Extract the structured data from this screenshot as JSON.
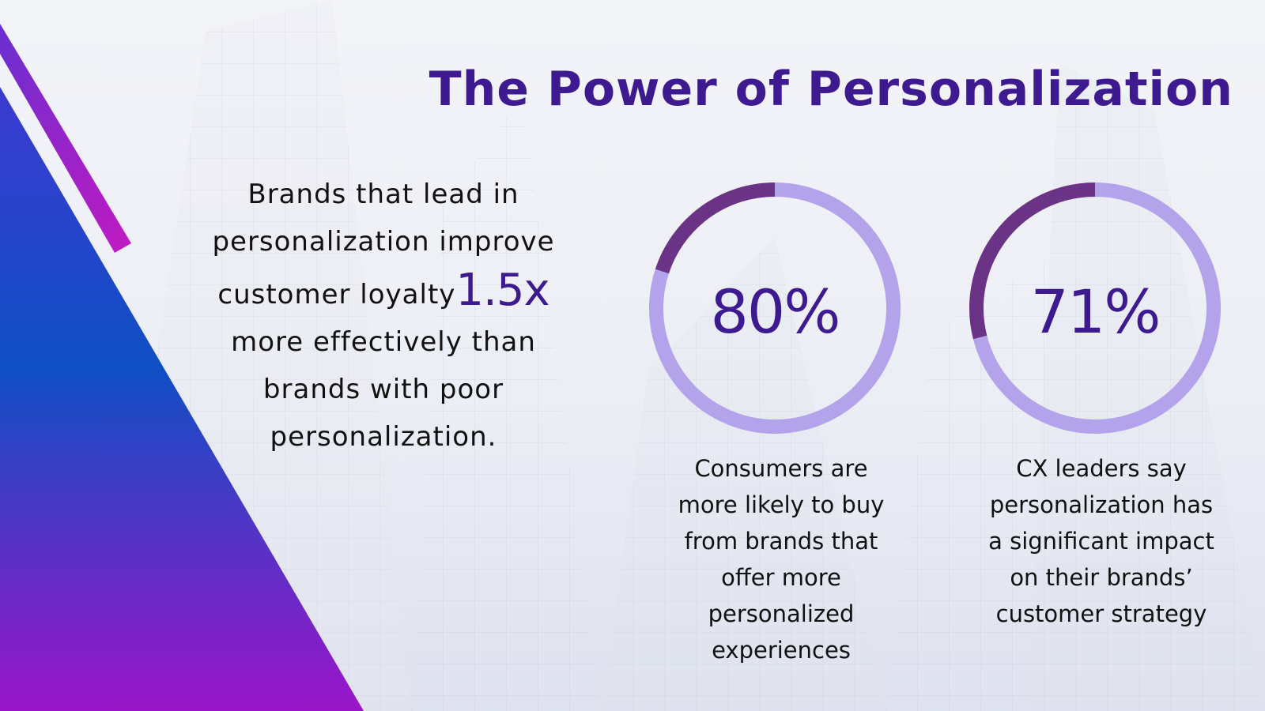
{
  "slide": {
    "title": "The Power of Personalization",
    "claim": {
      "line1": "Brands that lead in",
      "line2": "personalization improve",
      "line3": "customer loyalty",
      "multiplier": "1.5x",
      "line4": "more effectively than",
      "line5": "brands with poor",
      "line6": "personalization."
    },
    "stats": [
      {
        "value": "80%",
        "fraction": 0.8,
        "caption_lines": [
          "Consumers are",
          "more likely to buy",
          "from brands that",
          "offer more",
          "personalized",
          "experiences"
        ]
      },
      {
        "value": "71%",
        "fraction": 0.71,
        "caption_lines": [
          "CX leaders say",
          "personalization has",
          "a significant impact",
          "on their brands’",
          "customer strategy"
        ]
      }
    ]
  },
  "colors": {
    "title": "#3d1a8f",
    "ring_progress": "#b3a3ea",
    "ring_remainder": "#6a3385",
    "band_top": "#3b3ad0",
    "band_bottom": "#9b16c8"
  }
}
